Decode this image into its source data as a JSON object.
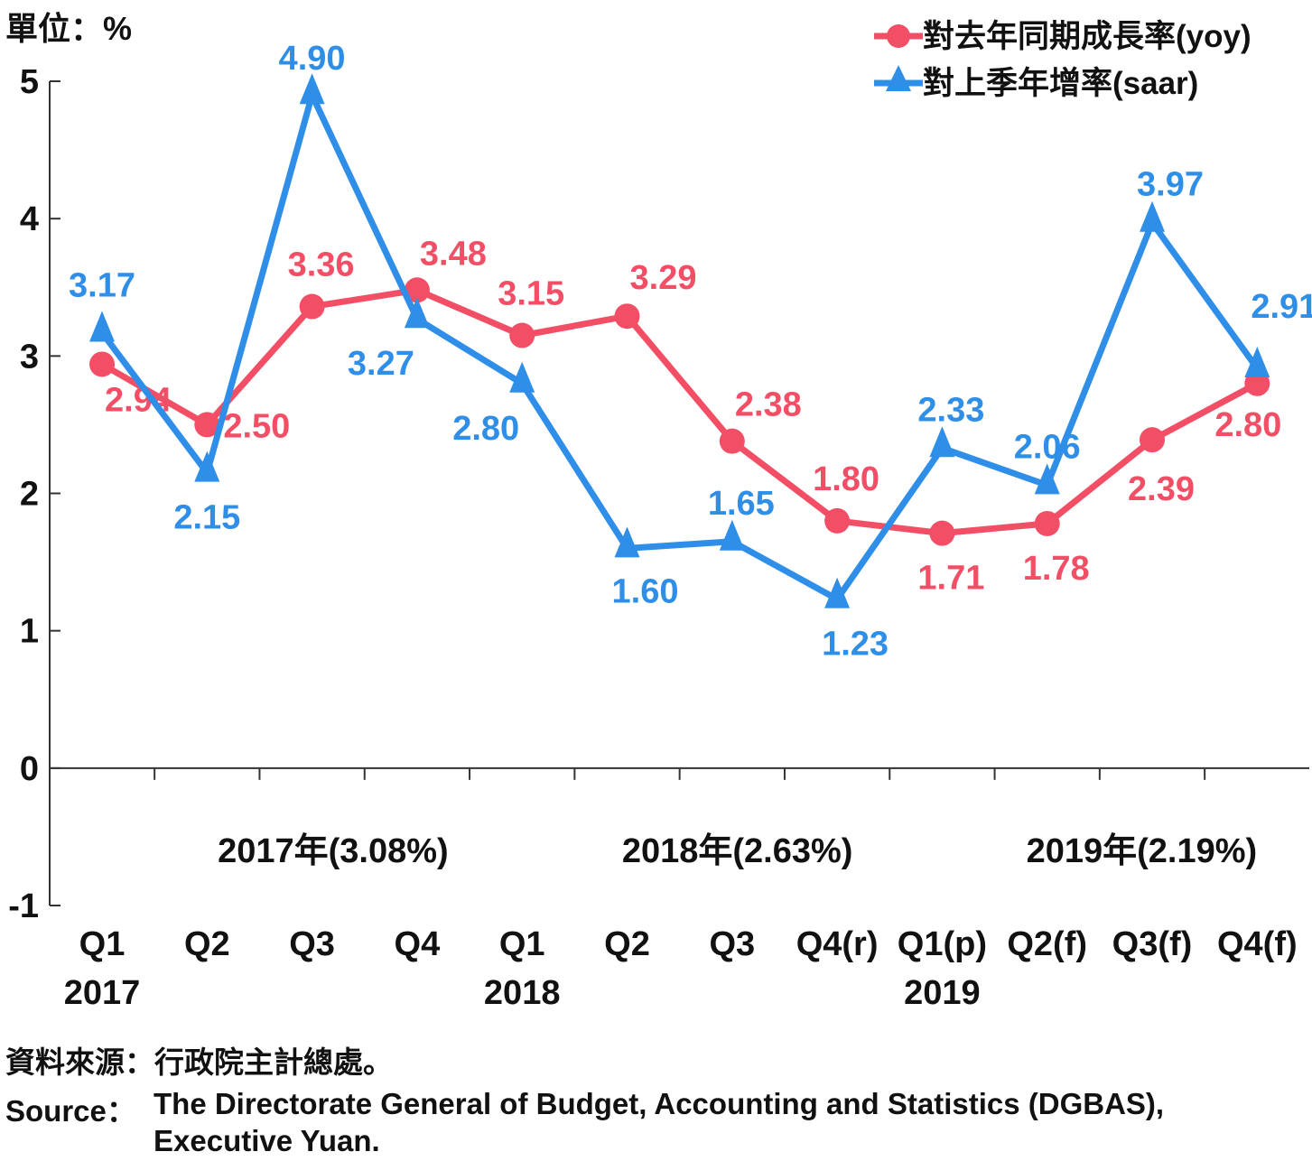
{
  "chart_data": {
    "type": "line",
    "unit_label": "單位：%",
    "ylim": [
      -1,
      5
    ],
    "yticks": [
      "-1",
      "0",
      "1",
      "2",
      "3",
      "4",
      "5"
    ],
    "categories": [
      "Q1",
      "Q2",
      "Q3",
      "Q4",
      "Q1",
      "Q2",
      "Q3",
      "Q4(r)",
      "Q1(p)",
      "Q2(f)",
      "Q3(f)",
      "Q4(f)"
    ],
    "year_labels": [
      {
        "index": 0,
        "text": "2017"
      },
      {
        "index": 4,
        "text": "2018"
      },
      {
        "index": 8,
        "text": "2019"
      }
    ],
    "annual_labels": [
      {
        "center": 2.2,
        "text": "2017年(3.08%)"
      },
      {
        "center": 6.05,
        "text": "2018年(2.63%)"
      },
      {
        "center": 9.9,
        "text": "2019年(2.19%)"
      }
    ],
    "series": [
      {
        "name": "對去年同期成長率(yoy)",
        "color": "#f24f66",
        "marker": "circle",
        "values": [
          2.94,
          2.5,
          3.36,
          3.48,
          3.15,
          3.29,
          2.38,
          1.8,
          1.71,
          1.78,
          2.39,
          2.8
        ],
        "labels": [
          "2.94",
          "2.50",
          "3.36",
          "3.48",
          "3.15",
          "3.29",
          "2.38",
          "1.80",
          "1.71",
          "1.78",
          "2.39",
          "2.80"
        ]
      },
      {
        "name": "對上季年增率(saar)",
        "color": "#2f8fe8",
        "marker": "triangle",
        "values": [
          3.17,
          2.15,
          4.9,
          3.27,
          2.8,
          1.6,
          1.65,
          1.23,
          2.33,
          2.06,
          3.97,
          2.91
        ],
        "labels": [
          "3.17",
          "2.15",
          "4.90",
          "3.27",
          "2.80",
          "1.60",
          "1.65",
          "1.23",
          "2.33",
          "2.06",
          "3.97",
          "2.91"
        ]
      }
    ],
    "legend_position": "top-right",
    "grid": false
  },
  "footer": {
    "source_zh": "資料來源：行政院主計總處。",
    "source_en_label": "Source：",
    "source_en_line1": "The Directorate General of Budget, Accounting and Statistics (DGBAS),",
    "source_en_line2": "Executive Yuan."
  }
}
